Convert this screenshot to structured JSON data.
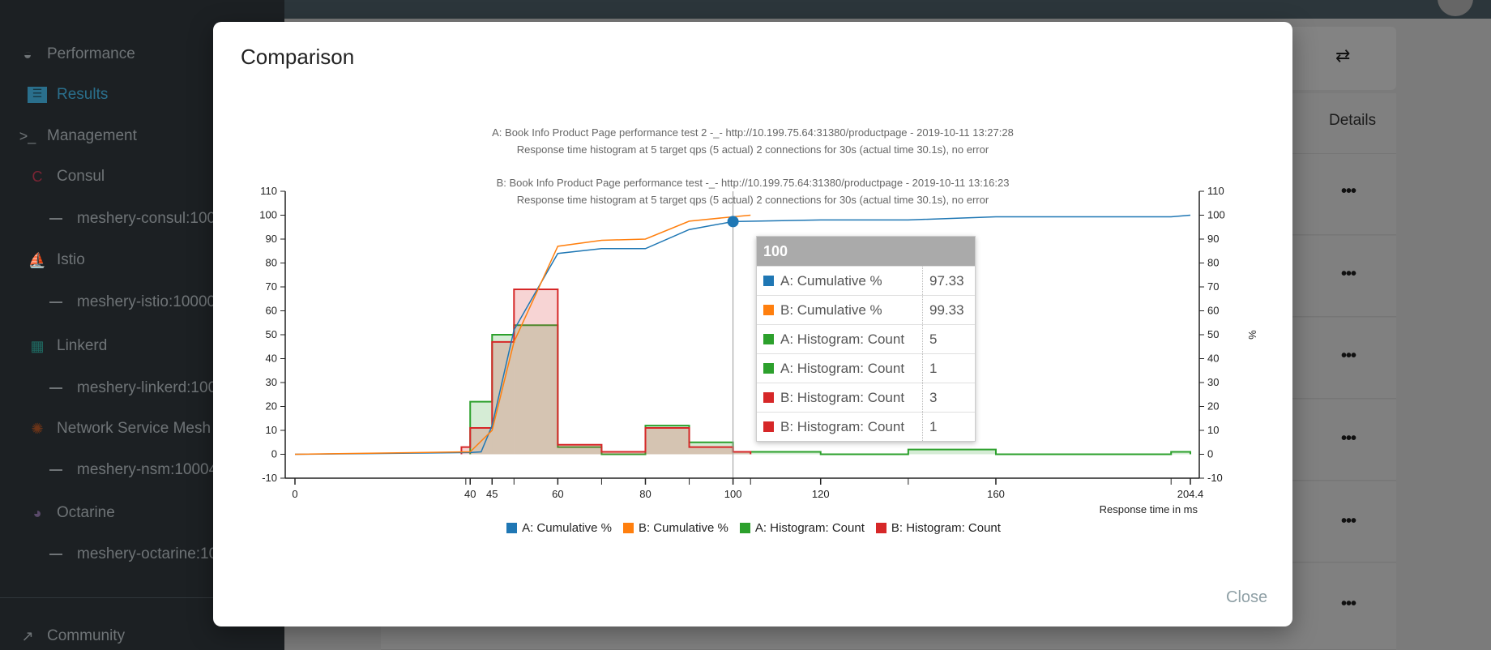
{
  "sidebar": {
    "items": [
      {
        "label": "Performance",
        "icon": "speedometer-icon"
      },
      {
        "label": "Results",
        "icon": "results-icon"
      },
      {
        "label": "Management",
        "icon": "terminal-icon"
      },
      {
        "label": "Consul",
        "icon": "consul-icon"
      },
      {
        "label": "meshery-consul:100"
      },
      {
        "label": "Istio",
        "icon": "istio-sail-icon"
      },
      {
        "label": "meshery-istio:10000"
      },
      {
        "label": "Linkerd",
        "icon": "linkerd-icon"
      },
      {
        "label": "meshery-linkerd:100"
      },
      {
        "label": "Network Service Mesh",
        "icon": "nsm-icon"
      },
      {
        "label": "meshery-nsm:10004"
      },
      {
        "label": "Octarine",
        "icon": "octarine-icon"
      },
      {
        "label": "meshery-octarine:10"
      },
      {
        "label": "Community",
        "icon": "external-link-icon"
      }
    ],
    "accent": "#2f8fb5"
  },
  "background": {
    "details_header": "Details",
    "row_menu": "•••",
    "compare_icon": "compare-arrows-icon"
  },
  "modal": {
    "title": "Comparison",
    "subtitle_a1": "A: Book Info Product Page performance test 2 -_- http://10.199.75.64:31380/productpage - 2019-10-11 13:27:28",
    "subtitle_a2": "Response time histogram at 5 target qps (5 actual) 2 connections for 30s (actual time 30.1s), no error",
    "subtitle_b1": "B: Book Info Product Page performance test -_- http://10.199.75.64:31380/productpage - 2019-10-11 13:16:23",
    "subtitle_b2": "Response time histogram at 5 target qps (5 actual) 2 connections for 30s (actual time 30.1s), no error",
    "close_label": "Close"
  },
  "tooltip": {
    "header": "100",
    "rows": [
      {
        "name": "A: Cumulative %",
        "value": "97.33",
        "color": "#1f77b4"
      },
      {
        "name": "B: Cumulative %",
        "value": "99.33",
        "color": "#ff7f0e"
      },
      {
        "name": "A: Histogram: Count",
        "value": "5",
        "color": "#2ca02c"
      },
      {
        "name": "A: Histogram: Count",
        "value": "1",
        "color": "#2ca02c"
      },
      {
        "name": "B: Histogram: Count",
        "value": "3",
        "color": "#d62728"
      },
      {
        "name": "B: Histogram: Count",
        "value": "1",
        "color": "#d62728"
      }
    ]
  },
  "chart_data": {
    "type": "line+histogram",
    "xlabel": "Response time in ms",
    "ylabel": "%",
    "xlim": [
      0,
      204.4
    ],
    "ylim": [
      -10,
      110
    ],
    "grid": false,
    "legend_position": "bottom",
    "xtick_labels": [
      "0",
      "40",
      "45",
      "60",
      "80",
      "100",
      "120",
      "160",
      "204.4"
    ],
    "xticks_unlabeled": [
      39,
      50,
      70,
      90,
      104,
      140,
      200
    ],
    "yticks": [
      -10,
      0,
      10,
      20,
      30,
      40,
      50,
      60,
      70,
      80,
      90,
      100,
      110
    ],
    "hover_x": 100,
    "series": [
      {
        "name": "A: Cumulative %",
        "kind": "line",
        "color": "#1f77b4",
        "points": [
          [
            0,
            0
          ],
          [
            40,
            0.7
          ],
          [
            42.5,
            1
          ],
          [
            45,
            12
          ],
          [
            50,
            52
          ],
          [
            60,
            84
          ],
          [
            70,
            86
          ],
          [
            80,
            86
          ],
          [
            90,
            94
          ],
          [
            100,
            97.33
          ],
          [
            120,
            98
          ],
          [
            140,
            98
          ],
          [
            160,
            99.33
          ],
          [
            200,
            99.33
          ],
          [
            204.4,
            100
          ]
        ]
      },
      {
        "name": "B: Cumulative %",
        "kind": "line",
        "color": "#ff7f0e",
        "points": [
          [
            0,
            0
          ],
          [
            39,
            1
          ],
          [
            40,
            1
          ],
          [
            45,
            10
          ],
          [
            50,
            47
          ],
          [
            60,
            87
          ],
          [
            70,
            89.5
          ],
          [
            80,
            90
          ],
          [
            90,
            97.5
          ],
          [
            100,
            99.33
          ],
          [
            104,
            100
          ]
        ]
      },
      {
        "name": "A: Histogram: Count",
        "kind": "histogram",
        "color": "#2ca02c",
        "bins": [
          [
            40,
            45,
            22
          ],
          [
            45,
            50,
            50
          ],
          [
            50,
            60,
            54
          ],
          [
            60,
            70,
            3
          ],
          [
            70,
            80,
            0
          ],
          [
            80,
            90,
            12
          ],
          [
            90,
            100,
            5
          ],
          [
            100,
            120,
            1
          ],
          [
            120,
            140,
            0
          ],
          [
            140,
            160,
            2
          ],
          [
            160,
            200,
            0
          ],
          [
            200,
            204.4,
            1
          ]
        ]
      },
      {
        "name": "B: Histogram: Count",
        "kind": "histogram",
        "color": "#d62728",
        "bins": [
          [
            38,
            40,
            3
          ],
          [
            40,
            45,
            11
          ],
          [
            45,
            50,
            47
          ],
          [
            50,
            60,
            69
          ],
          [
            60,
            70,
            4
          ],
          [
            70,
            80,
            1
          ],
          [
            80,
            90,
            11
          ],
          [
            90,
            100,
            3
          ],
          [
            100,
            104,
            1
          ]
        ]
      }
    ]
  }
}
